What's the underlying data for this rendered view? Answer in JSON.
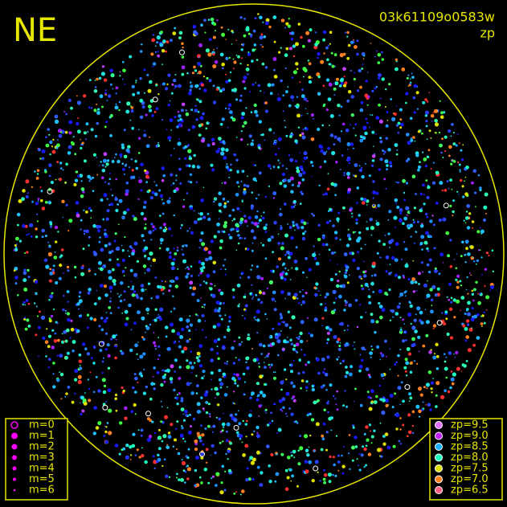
{
  "header": {
    "direction": "NE",
    "image_id": "03k61109o0583w",
    "mode": "zp"
  },
  "magnitude_legend": [
    "m=0",
    "m=1",
    "m=2",
    "m=3",
    "m=4",
    "m=5",
    "m=6"
  ],
  "zp_legend": [
    {
      "label": "zp=9.5",
      "color": "#e070ff"
    },
    {
      "label": "zp=9.0",
      "color": "#c020ff"
    },
    {
      "label": "zp=8.5",
      "color": "#20b0ff"
    },
    {
      "label": "zp=8.0",
      "color": "#20ffc0"
    },
    {
      "label": "zp=7.5",
      "color": "#e0e000"
    },
    {
      "label": "zp=7.0",
      "color": "#ff8020"
    },
    {
      "label": "zp=6.5",
      "color": "#ff6080"
    }
  ]
}
